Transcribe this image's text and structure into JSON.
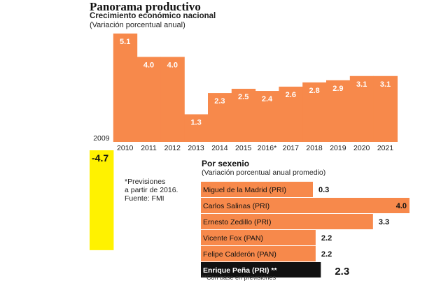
{
  "title": "Panorama productivo",
  "chart_data": [
    {
      "type": "bar",
      "title": "Crecimiento económico nacional",
      "subtitle": "(Variación porcentual anual)",
      "categories": [
        "2009",
        "2010",
        "2011",
        "2012",
        "2013",
        "2014",
        "2015",
        "2016*",
        "2017",
        "2018",
        "2019",
        "2020",
        "2021"
      ],
      "values": [
        -4.7,
        5.1,
        4.0,
        4.0,
        1.3,
        2.3,
        2.5,
        2.4,
        2.6,
        2.8,
        2.9,
        3.1,
        3.1
      ],
      "value_labels": [
        "-4.7",
        "5.1",
        "4.0",
        "4.0",
        "1.3",
        "2.3",
        "2.5",
        "2.4",
        "2.6",
        "2.8",
        "2.9",
        "3.1",
        "3.1"
      ],
      "ylim": [
        -4.7,
        5.1
      ],
      "colors": {
        "positive": "#f7894b",
        "negative": "#fff200"
      }
    },
    {
      "type": "bar",
      "orientation": "horizontal",
      "title": "Por sexenio",
      "subtitle": "(Variación porcentual anual promedio)",
      "categories": [
        "Miguel de la Madrid (PRI)",
        "Carlos Salinas (PRI)",
        "Ernesto Zedillo (PRI)",
        "Vicente Fox (PAN)",
        "Felipe Calderón (PAN)",
        "Enrique Peña (PRI) **"
      ],
      "values": [
        0.3,
        4.0,
        3.3,
        2.2,
        2.2,
        2.3
      ],
      "value_labels": [
        "0.3",
        "4.0",
        "3.3",
        "2.2",
        "2.2",
        "2.3"
      ],
      "highlight_index": 5,
      "colors": {
        "bar": "#f7894b",
        "highlight": "#111111"
      }
    }
  ],
  "notes": "*Previsiones\na partir de 2016.\nFuente: FMI",
  "footnote": "**Con base en previsiones"
}
